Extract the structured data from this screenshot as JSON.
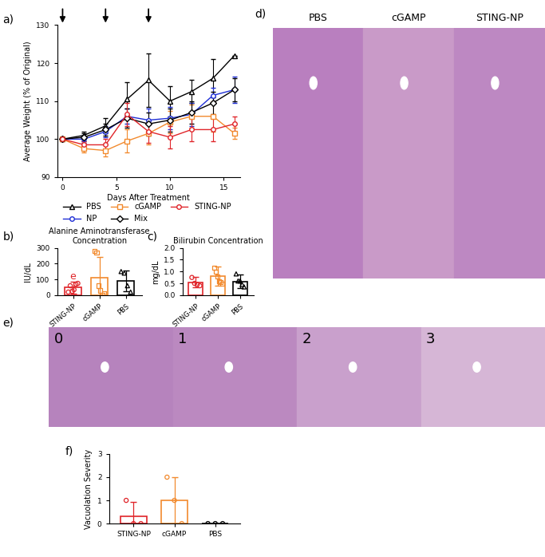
{
  "chart_data": [
    {
      "panel": "a)",
      "type": "line",
      "x": [
        0,
        2,
        4,
        6,
        8,
        10,
        12,
        14,
        16
      ],
      "xlim": [
        -0.5,
        16.5
      ],
      "xticks": [
        0,
        5,
        10,
        15
      ],
      "ylim": [
        90,
        130
      ],
      "yticks": [
        90,
        100,
        110,
        120,
        130
      ],
      "x_label": "Days After Treatment",
      "y_label": "Average Weight (% of Original)",
      "treatment_days": [
        0,
        4,
        8
      ],
      "legend": "below",
      "series": [
        {
          "name": "PBS",
          "color": "#000000",
          "marker": "triangle",
          "values": [
            100,
            101,
            103.5,
            110.5,
            115.5,
            110,
            112.5,
            116,
            122
          ],
          "errors": [
            0,
            1,
            2,
            4.5,
            7,
            4,
            3,
            5,
            0
          ]
        },
        {
          "name": "NP",
          "color": "#1f2fd6",
          "marker": "circle",
          "values": [
            100,
            100,
            102,
            106,
            105,
            105.5,
            106.5,
            111.5,
            113
          ],
          "errors": [
            0,
            1,
            1.5,
            2,
            3,
            3,
            3,
            2,
            3.5
          ]
        },
        {
          "name": "cGAMP",
          "color": "#f28a2e",
          "marker": "square",
          "values": [
            100,
            97.5,
            97,
            99.5,
            101.5,
            104.5,
            106,
            106,
            101.5
          ],
          "errors": [
            0,
            1,
            1.5,
            3,
            3,
            3,
            3,
            4,
            1.5
          ]
        },
        {
          "name": "Mix",
          "color": "#000000",
          "marker": "diamond",
          "values": [
            100,
            100.5,
            102.5,
            105.5,
            104,
            105,
            107,
            109.5,
            113
          ],
          "errors": [
            0,
            1,
            1.5,
            2.5,
            3,
            3,
            3,
            3,
            3
          ]
        },
        {
          "name": "STING-NP",
          "color": "#e0252a",
          "marker": "circle",
          "values": [
            100,
            98.5,
            98.5,
            106.5,
            102,
            100.5,
            102.5,
            102.5,
            104
          ],
          "errors": [
            0,
            1,
            1.5,
            3,
            3,
            3,
            3,
            3,
            2
          ]
        }
      ]
    },
    {
      "panel": "b)",
      "type": "bar",
      "title": "Alanine Aminotransferase Concentration",
      "y_label": "IU/dL",
      "categories": [
        "STING-NP",
        "cGAMP",
        "PBS"
      ],
      "values": [
        48,
        110,
        90
      ],
      "errors": [
        40,
        130,
        65
      ],
      "points": [
        [
          20,
          60,
          25,
          35,
          70,
          75
        ],
        [
          280,
          270,
          60,
          30,
          0,
          10
        ],
        [
          150,
          140,
          60,
          20
        ]
      ],
      "colors": [
        "#e0252a",
        "#f28a2e",
        "#000000"
      ],
      "markers": [
        "circle",
        "square",
        "triangle"
      ],
      "annotations": [
        {
          "text": "e",
          "category": "STING-NP"
        }
      ],
      "ylim": [
        0,
        300
      ],
      "yticks": [
        0,
        100,
        200,
        300
      ]
    },
    {
      "panel": "c)",
      "type": "bar",
      "title": "Bilirubin Concentration",
      "y_label": "mg/dL",
      "categories": [
        "STING-NP",
        "cGAMP",
        "PBS"
      ],
      "values": [
        0.55,
        0.8,
        0.58
      ],
      "errors": [
        0.22,
        0.4,
        0.28
      ],
      "points": [
        [
          0.75,
          0.5,
          0.45,
          0.4
        ],
        [
          1.15,
          1.0,
          0.8,
          0.6,
          0.55,
          0.5
        ],
        [
          0.9,
          0.6,
          0.6,
          0.45,
          0.35
        ]
      ],
      "colors": [
        "#e0252a",
        "#f28a2e",
        "#000000"
      ],
      "markers": [
        "circle",
        "square",
        "triangle"
      ],
      "ylim": [
        0,
        2.0
      ],
      "yticks": [
        {
          "value": 0,
          "label": "0.0"
        },
        0.5,
        {
          "value": 1,
          "label": "1.0"
        },
        1.5,
        {
          "value": 2,
          "label": "2.0"
        }
      ]
    },
    {
      "panel": "f)",
      "type": "bar",
      "y_label": "Vacuolation Severity",
      "categories": [
        "STING-NP",
        "cGAMP",
        "PBS"
      ],
      "values": [
        0.33,
        1.0,
        0
      ],
      "errors": [
        0.6,
        1.0,
        0
      ],
      "points": [
        [
          1,
          0,
          0
        ],
        [
          2,
          1,
          0
        ],
        [
          0,
          0,
          0
        ]
      ],
      "colors": [
        "#e0252a",
        "#f28a2e",
        "#000000"
      ],
      "markers": [
        "circle",
        "circle",
        "circle"
      ],
      "ylim": [
        0,
        3
      ],
      "yticks": [
        0,
        1,
        2,
        3
      ]
    }
  ],
  "images": {
    "d": {
      "panel": "d)",
      "labels": [
        "PBS",
        "cGAMP",
        "STING-NP"
      ]
    },
    "e": {
      "panel": "e)",
      "labels": [
        "0",
        "1",
        "2",
        "3"
      ]
    }
  }
}
